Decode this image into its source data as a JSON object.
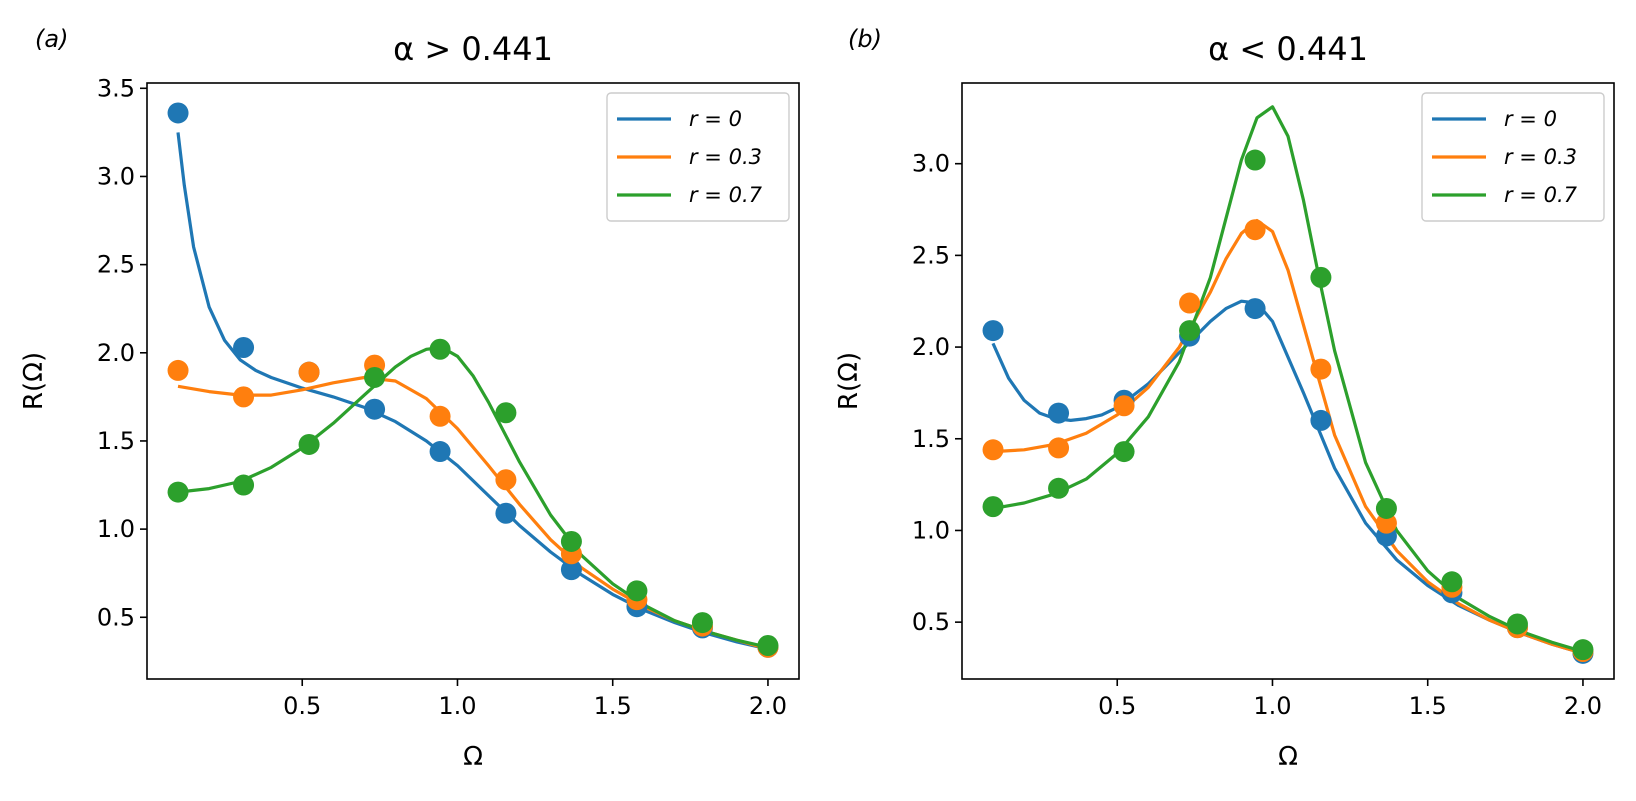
{
  "chart_data": [
    {
      "type": "line",
      "panel_label": "(a)",
      "title": "α > 0.441",
      "xlabel": "Ω",
      "ylabel": "R(Ω)",
      "xlim": [
        0.0,
        2.1
      ],
      "ylim": [
        0.15,
        3.53
      ],
      "xticks": [
        0.5,
        1.0,
        1.5,
        2.0
      ],
      "xtick_labels": [
        "0.5",
        "1.0",
        "1.5",
        "2.0"
      ],
      "yticks": [
        0.5,
        1.0,
        1.5,
        2.0,
        2.5,
        3.0,
        3.5
      ],
      "ytick_labels": [
        "0.5",
        "1.0",
        "1.5",
        "2.0",
        "2.5",
        "3.0",
        "3.5"
      ],
      "grid": false,
      "legend_position": "top-right",
      "series": [
        {
          "name": "r = 0",
          "color": "#1f77b4",
          "points_x": [
            0.1,
            0.311,
            0.522,
            0.733,
            0.944,
            1.156,
            1.367,
            1.578,
            1.789,
            2.0
          ],
          "points_y": [
            3.36,
            2.03,
            1.89,
            1.68,
            1.44,
            1.09,
            0.77,
            0.56,
            0.44,
            0.33
          ],
          "curve_x": [
            0.1,
            0.12,
            0.15,
            0.2,
            0.25,
            0.3,
            0.35,
            0.4,
            0.5,
            0.6,
            0.7,
            0.8,
            0.9,
            1.0,
            1.1,
            1.2,
            1.3,
            1.4,
            1.5,
            1.6,
            1.7,
            1.8,
            1.9,
            2.0
          ],
          "curve_y": [
            3.25,
            2.95,
            2.6,
            2.26,
            2.07,
            1.96,
            1.9,
            1.86,
            1.8,
            1.75,
            1.69,
            1.61,
            1.5,
            1.36,
            1.19,
            1.02,
            0.87,
            0.74,
            0.63,
            0.54,
            0.47,
            0.41,
            0.36,
            0.32
          ]
        },
        {
          "name": "r = 0.3",
          "color": "#ff7f0e",
          "points_x": [
            0.1,
            0.311,
            0.522,
            0.733,
            0.944,
            1.156,
            1.367,
            1.578,
            1.789,
            2.0
          ],
          "points_y": [
            1.9,
            1.75,
            1.89,
            1.93,
            1.64,
            1.28,
            0.86,
            0.6,
            0.45,
            0.33
          ],
          "curve_x": [
            0.1,
            0.2,
            0.3,
            0.4,
            0.5,
            0.6,
            0.7,
            0.8,
            0.9,
            1.0,
            1.1,
            1.2,
            1.3,
            1.4,
            1.5,
            1.6,
            1.7,
            1.8,
            1.9,
            2.0
          ],
          "curve_y": [
            1.81,
            1.78,
            1.76,
            1.76,
            1.79,
            1.83,
            1.86,
            1.84,
            1.74,
            1.57,
            1.36,
            1.14,
            0.94,
            0.78,
            0.66,
            0.56,
            0.48,
            0.42,
            0.37,
            0.32
          ]
        },
        {
          "name": "r = 0.7",
          "color": "#2ca02c",
          "points_x": [
            0.1,
            0.311,
            0.522,
            0.733,
            0.944,
            1.156,
            1.367,
            1.578,
            1.789,
            2.0
          ],
          "points_y": [
            1.21,
            1.25,
            1.48,
            1.86,
            2.02,
            1.66,
            0.93,
            0.65,
            0.47,
            0.34
          ],
          "curve_x": [
            0.1,
            0.2,
            0.3,
            0.4,
            0.5,
            0.6,
            0.7,
            0.8,
            0.85,
            0.9,
            0.95,
            1.0,
            1.05,
            1.1,
            1.2,
            1.3,
            1.4,
            1.5,
            1.6,
            1.7,
            1.8,
            1.9,
            2.0
          ],
          "curve_y": [
            1.21,
            1.23,
            1.27,
            1.35,
            1.46,
            1.6,
            1.76,
            1.92,
            1.98,
            2.02,
            2.03,
            1.98,
            1.87,
            1.72,
            1.38,
            1.08,
            0.85,
            0.69,
            0.57,
            0.48,
            0.42,
            0.37,
            0.33
          ]
        }
      ]
    },
    {
      "type": "line",
      "panel_label": "(b)",
      "title": "α < 0.441",
      "xlabel": "Ω",
      "ylabel": "R(Ω)",
      "xlim": [
        0.0,
        2.1
      ],
      "ylim": [
        0.19,
        3.44
      ],
      "xticks": [
        0.5,
        1.0,
        1.5,
        2.0
      ],
      "xtick_labels": [
        "0.5",
        "1.0",
        "1.5",
        "2.0"
      ],
      "yticks": [
        0.5,
        1.0,
        1.5,
        2.0,
        2.5,
        3.0
      ],
      "ytick_labels": [
        "0.5",
        "1.0",
        "1.5",
        "2.0",
        "2.5",
        "3.0"
      ],
      "grid": false,
      "legend_position": "top-right",
      "series": [
        {
          "name": "r = 0",
          "color": "#1f77b4",
          "points_x": [
            0.1,
            0.311,
            0.522,
            0.733,
            0.944,
            1.156,
            1.367,
            1.578,
            1.789,
            2.0
          ],
          "points_y": [
            2.09,
            1.64,
            1.71,
            2.06,
            2.21,
            1.6,
            0.97,
            0.66,
            0.47,
            0.33
          ],
          "curve_x": [
            0.1,
            0.15,
            0.2,
            0.25,
            0.3,
            0.35,
            0.4,
            0.45,
            0.5,
            0.6,
            0.7,
            0.8,
            0.85,
            0.9,
            0.95,
            1.0,
            1.1,
            1.2,
            1.3,
            1.4,
            1.5,
            1.6,
            1.7,
            1.8,
            1.9,
            2.0
          ],
          "curve_y": [
            2.02,
            1.83,
            1.71,
            1.64,
            1.61,
            1.6,
            1.61,
            1.63,
            1.67,
            1.8,
            1.97,
            2.14,
            2.21,
            2.25,
            2.24,
            2.14,
            1.75,
            1.34,
            1.04,
            0.84,
            0.7,
            0.59,
            0.51,
            0.44,
            0.38,
            0.33
          ]
        },
        {
          "name": "r = 0.3",
          "color": "#ff7f0e",
          "points_x": [
            0.1,
            0.311,
            0.522,
            0.733,
            0.944,
            1.156,
            1.367,
            1.578,
            1.789,
            2.0
          ],
          "points_y": [
            1.44,
            1.45,
            1.68,
            2.24,
            2.64,
            1.88,
            1.04,
            0.69,
            0.47,
            0.34
          ],
          "curve_x": [
            0.1,
            0.2,
            0.3,
            0.4,
            0.5,
            0.6,
            0.7,
            0.8,
            0.85,
            0.9,
            0.95,
            1.0,
            1.05,
            1.1,
            1.2,
            1.3,
            1.4,
            1.5,
            1.6,
            1.7,
            1.8,
            1.9,
            2.0
          ],
          "curve_y": [
            1.43,
            1.44,
            1.47,
            1.53,
            1.63,
            1.78,
            2.0,
            2.3,
            2.48,
            2.62,
            2.69,
            2.63,
            2.42,
            2.12,
            1.52,
            1.13,
            0.89,
            0.72,
            0.6,
            0.51,
            0.44,
            0.38,
            0.33
          ]
        },
        {
          "name": "r = 0.7",
          "color": "#2ca02c",
          "points_x": [
            0.1,
            0.311,
            0.522,
            0.733,
            0.944,
            1.156,
            1.367,
            1.578,
            1.789,
            2.0
          ],
          "points_y": [
            1.13,
            1.23,
            1.43,
            2.09,
            3.02,
            2.38,
            1.12,
            0.72,
            0.49,
            0.35
          ],
          "curve_x": [
            0.1,
            0.2,
            0.3,
            0.4,
            0.5,
            0.6,
            0.7,
            0.8,
            0.85,
            0.9,
            0.95,
            1.0,
            1.05,
            1.1,
            1.15,
            1.2,
            1.3,
            1.4,
            1.5,
            1.6,
            1.7,
            1.8,
            1.9,
            2.0
          ],
          "curve_y": [
            1.12,
            1.15,
            1.2,
            1.28,
            1.42,
            1.62,
            1.92,
            2.38,
            2.7,
            3.02,
            3.25,
            3.31,
            3.15,
            2.8,
            2.38,
            1.98,
            1.37,
            1.0,
            0.78,
            0.63,
            0.53,
            0.45,
            0.39,
            0.34
          ]
        }
      ]
    }
  ]
}
